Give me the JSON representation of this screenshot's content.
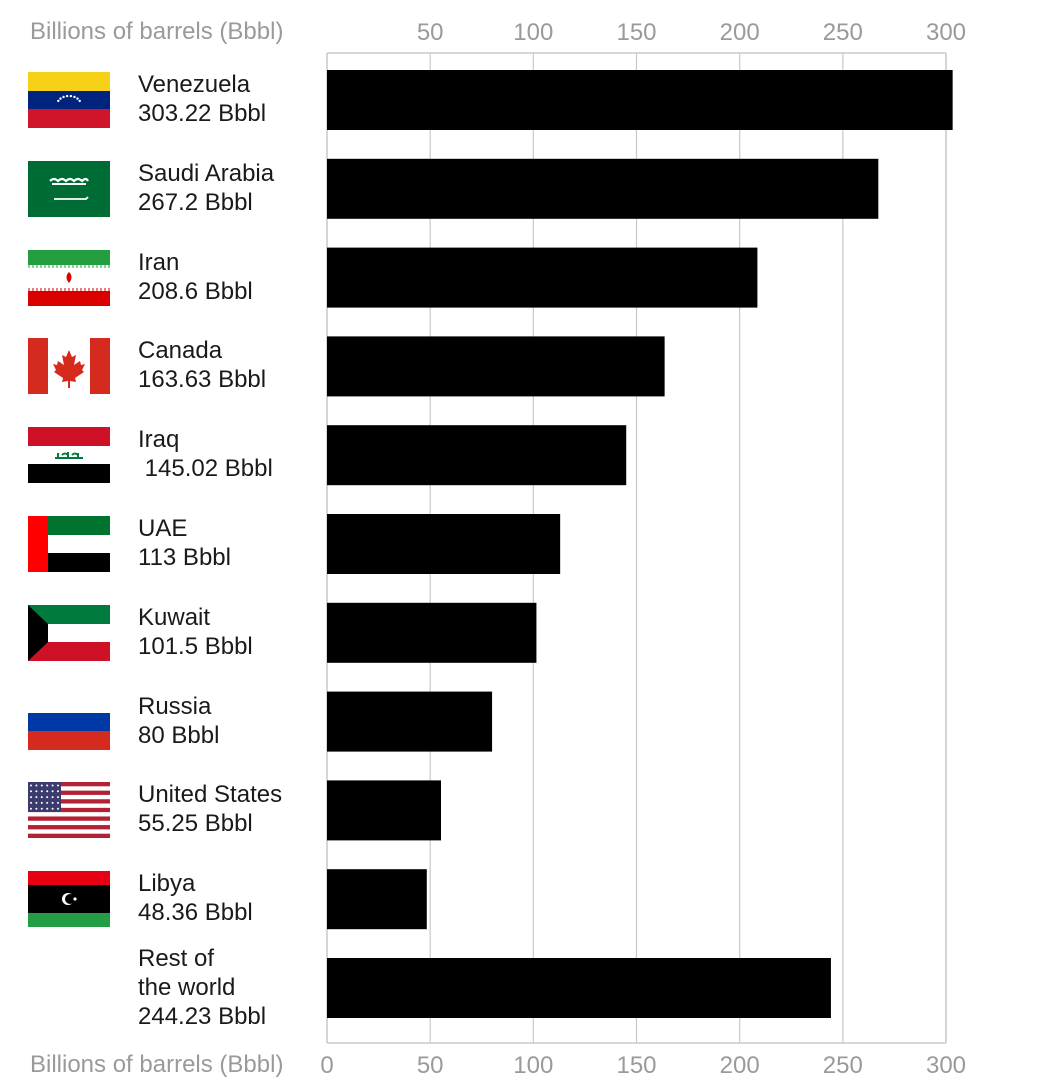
{
  "chart_data": {
    "type": "bar",
    "orientation": "horizontal",
    "axis_title": "Billions of barrels (Bbbl)",
    "xlim": [
      0,
      300
    ],
    "ticks_top": [
      "50",
      "100",
      "150",
      "200",
      "250",
      "300"
    ],
    "ticks_bottom": [
      "0",
      "50",
      "100",
      "150",
      "200",
      "250",
      "300"
    ],
    "grid": true,
    "bar_color": "#000000",
    "categories": [
      {
        "name": "Venezuela",
        "value_label": "303.22 Bbbl",
        "value": 303.22,
        "flag": "venezuela-flag-icon"
      },
      {
        "name": "Saudi Arabia",
        "value_label": "267.2 Bbbl",
        "value": 267.2,
        "flag": "saudi-arabia-flag-icon"
      },
      {
        "name": "Iran",
        "value_label": "208.6 Bbbl",
        "value": 208.6,
        "flag": "iran-flag-icon"
      },
      {
        "name": "Canada",
        "value_label": "163.63 Bbbl",
        "value": 163.63,
        "flag": "canada-flag-icon"
      },
      {
        "name": "Iraq",
        "value_label": " 145.02 Bbbl",
        "value": 145.02,
        "flag": "iraq-flag-icon"
      },
      {
        "name": "UAE",
        "value_label": "113 Bbbl",
        "value": 113,
        "flag": "uae-flag-icon"
      },
      {
        "name": "Kuwait",
        "value_label": "101.5 Bbbl",
        "value": 101.5,
        "flag": "kuwait-flag-icon"
      },
      {
        "name": "Russia",
        "value_label": "80 Bbbl",
        "value": 80,
        "flag": "russia-flag-icon"
      },
      {
        "name": "United States",
        "value_label": "55.25 Bbbl",
        "value": 55.25,
        "flag": "united-states-flag-icon"
      },
      {
        "name": "Libya",
        "value_label": "48.36 Bbbl",
        "value": 48.36,
        "flag": "libya-flag-icon"
      },
      {
        "name": "Rest of\nthe world",
        "value_label": "244.23 Bbbl",
        "value": 244.23,
        "flag": ""
      }
    ],
    "colors": {
      "grid": "#c8c8c8",
      "tick_text": "#9a9a9a",
      "venezuela": [
        "#f7d117",
        "#00247d",
        "#cf142b"
      ],
      "saudi_arabia": "#006c35",
      "iran": [
        "#239f40",
        "#da0000"
      ],
      "canada": "#d52b1e",
      "iraq": [
        "#ce1126",
        "#007a3d"
      ],
      "uae": [
        "#00732f",
        "#ff0000"
      ],
      "kuwait": [
        "#007a3d",
        "#ce1126"
      ],
      "russia": [
        "#0039a6",
        "#d52b1e"
      ],
      "usa": [
        "#b22234",
        "#3c3b6e"
      ],
      "libya": [
        "#e70013",
        "#239e46"
      ]
    }
  }
}
